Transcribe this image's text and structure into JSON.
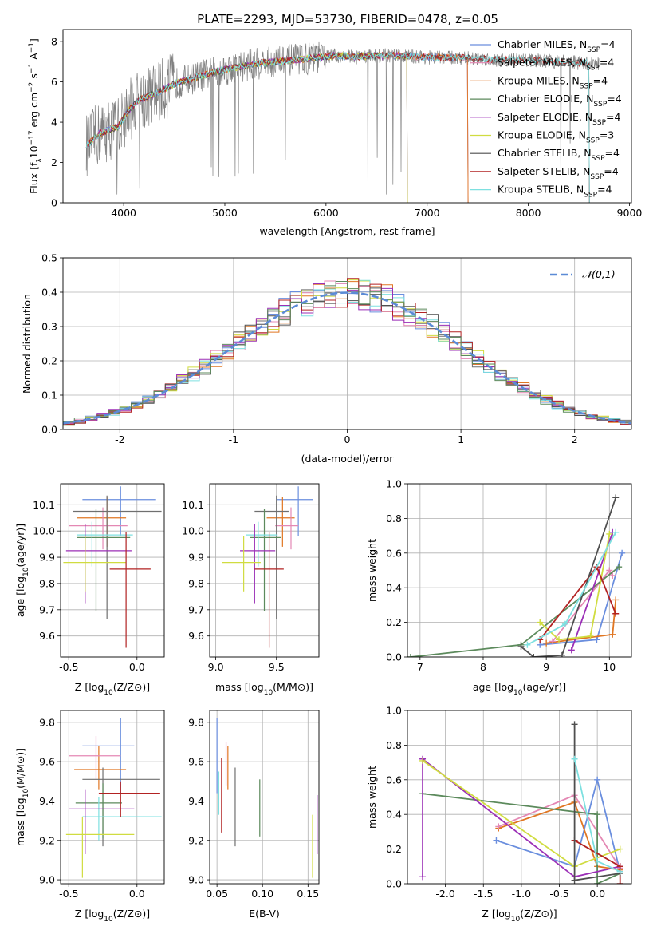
{
  "figure_title": "PLATE=2293, MJD=53730, FIBERID=0478, z=0.05",
  "model_colors": [
    "#6a8ede",
    "#e07622",
    "#e488b4",
    "#6f6f6f",
    "#d0dc40",
    "#7ee0e0",
    "#9b2fb6",
    "#b22222",
    "#4f4f4f",
    "#5c8a5c"
  ],
  "chart_data": [
    {
      "id": "spectrum",
      "type": "line",
      "title": "PLATE=2293, MJD=53730, FIBERID=0478, z=0.05",
      "xlabel": "wavelength [Angstrom, rest frame]",
      "ylabel": "Flux [f_λ 10^-17 erg cm^-2 s^-1 A^-1]",
      "xlim": [
        3400,
        9020
      ],
      "ylim": [
        0,
        8.6
      ],
      "xticks": [
        4000,
        5000,
        6000,
        7000,
        8000,
        9000
      ],
      "yticks": [
        0,
        2,
        4,
        6,
        8
      ],
      "grid": false,
      "legend_position": "top-right",
      "observed": {
        "color": "#808080",
        "x": [
          3650,
          3750,
          3850,
          3950,
          4050,
          4150,
          4300,
          4500,
          4700,
          4900,
          5100,
          5300,
          5500,
          5700,
          5900,
          6100,
          6300,
          6500,
          6700,
          6900,
          7100,
          7300,
          7500,
          7700,
          7900,
          8100,
          8300,
          8500,
          8700
        ],
        "y": [
          2.9,
          3.4,
          3.6,
          3.8,
          4.6,
          5.1,
          5.4,
          5.9,
          6.2,
          6.5,
          6.7,
          6.9,
          7.0,
          7.1,
          7.2,
          7.3,
          7.25,
          7.3,
          7.3,
          7.25,
          7.2,
          7.2,
          7.15,
          7.1,
          7.1,
          7.05,
          7.0,
          6.95,
          6.9
        ]
      },
      "series": [
        {
          "name": "Chabrier MILES, N_SSP=4",
          "color": "#6a8ede",
          "end": 7400
        },
        {
          "name": "Salpeter MILES, N_SSP=4",
          "color": "#e488b4",
          "end": 7400
        },
        {
          "name": "Kroupa MILES, N_SSP=4",
          "color": "#e07622",
          "end": 7400
        },
        {
          "name": "Chabrier ELODIE, N_SSP=4",
          "color": "#5c8a5c",
          "end": 6800
        },
        {
          "name": "Salpeter ELODIE, N_SSP=4",
          "color": "#9b2fb6",
          "end": 6800
        },
        {
          "name": "Kroupa ELODIE, N_SSP=3",
          "color": "#d0dc40",
          "end": 6800
        },
        {
          "name": "Chabrier STELIB, N_SSP=4",
          "color": "#4f4f4f",
          "end": 8600
        },
        {
          "name": "Salpeter STELIB, N_SSP=4",
          "color": "#b22222",
          "end": 8600
        },
        {
          "name": "Kroupa STELIB, N_SSP=4",
          "color": "#7ee0e0",
          "end": 8600
        }
      ]
    },
    {
      "id": "residuals",
      "type": "histogram",
      "xlabel": "(data-model)/error",
      "ylabel": "Normed distribution",
      "xlim": [
        -2.5,
        2.5
      ],
      "ylim": [
        0,
        0.5
      ],
      "xticks": [
        -2,
        -1,
        0,
        1,
        2
      ],
      "yticks": [
        0.0,
        0.1,
        0.2,
        0.3,
        0.4,
        0.5
      ],
      "grid": true,
      "legend_position": "top-right",
      "reference": {
        "name": "𝒩(0,1)",
        "color": "#5b8bd6",
        "mean": 0,
        "sigma": 1
      },
      "bin_width": 0.1
    },
    {
      "id": "age_vs_Z",
      "type": "errorbar",
      "xlabel": "Z [log10(Z/Z⊙)]",
      "ylabel": "age [log10(age/yr)]",
      "xlim": [
        -0.56,
        0.2
      ],
      "ylim": [
        9.52,
        10.18
      ],
      "xticks": [
        -0.5,
        0.0
      ],
      "yticks": [
        9.6,
        9.7,
        9.8,
        9.9,
        10.0,
        10.1
      ],
      "grid": true,
      "points": [
        {
          "x": -0.12,
          "y": 10.12,
          "xerr": [
            0.28,
            0.26
          ],
          "yerr": [
            0.14,
            0.05
          ],
          "color": "#6a8ede"
        },
        {
          "x": -0.22,
          "y": 10.05,
          "xerr": [
            0.22,
            0.14
          ],
          "yerr": [
            0.11,
            0.08
          ],
          "color": "#e07622"
        },
        {
          "x": -0.25,
          "y": 10.02,
          "xerr": [
            0.25,
            0.18
          ],
          "yerr": [
            0.09,
            0.07
          ],
          "color": "#e488b4"
        },
        {
          "x": -0.22,
          "y": 10.075,
          "xerr": [
            0.25,
            0.4
          ],
          "yerr": [
            0.41,
            0.06
          ],
          "color": "#6f6f6f"
        },
        {
          "x": -0.3,
          "y": 9.975,
          "xerr": [
            0.14,
            0.25
          ],
          "yerr": [
            0.28,
            0.11
          ],
          "color": "#5c8a5c"
        },
        {
          "x": -0.33,
          "y": 9.985,
          "xerr": [
            0.11,
            0.3
          ],
          "yerr": [
            0.12,
            0.05
          ],
          "color": "#7ee0e0"
        },
        {
          "x": -0.38,
          "y": 9.925,
          "xerr": [
            0.14,
            0.34
          ],
          "yerr": [
            0.2,
            0.1
          ],
          "color": "#9b2fb6"
        },
        {
          "x": -0.38,
          "y": 9.88,
          "xerr": [
            0.16,
            0.3
          ],
          "yerr": [
            0.11,
            0.1
          ],
          "color": "#d0dc40"
        },
        {
          "x": -0.08,
          "y": 9.855,
          "xerr": [
            0.12,
            0.18
          ],
          "yerr": [
            0.3,
            0.14
          ],
          "color": "#b22222"
        }
      ]
    },
    {
      "id": "age_vs_mass",
      "type": "errorbar",
      "xlabel": "mass [log10(M/M⊙)]",
      "ylabel": "",
      "xlim": [
        8.95,
        9.85
      ],
      "ylim": [
        9.52,
        10.18
      ],
      "xticks": [
        9.0,
        9.5
      ],
      "yticks": [
        9.6,
        9.7,
        9.8,
        9.9,
        10.0,
        10.1
      ],
      "grid": true,
      "points": [
        {
          "x": 9.68,
          "y": 10.12,
          "xerr": [
            0.18,
            0.12
          ],
          "yerr": [
            0.14,
            0.05
          ],
          "color": "#6a8ede"
        },
        {
          "x": 9.55,
          "y": 10.05,
          "xerr": [
            0.13,
            0.1
          ],
          "yerr": [
            0.11,
            0.08
          ],
          "color": "#e07622"
        },
        {
          "x": 9.62,
          "y": 10.02,
          "xerr": [
            0.13,
            0.06
          ],
          "yerr": [
            0.09,
            0.07
          ],
          "color": "#e488b4"
        },
        {
          "x": 9.5,
          "y": 10.075,
          "xerr": [
            0.18,
            0.1
          ],
          "yerr": [
            0.41,
            0.06
          ],
          "color": "#6f6f6f"
        },
        {
          "x": 9.4,
          "y": 9.975,
          "xerr": [
            0.12,
            0.14
          ],
          "yerr": [
            0.28,
            0.11
          ],
          "color": "#5c8a5c"
        },
        {
          "x": 9.35,
          "y": 9.985,
          "xerr": [
            0.1,
            0.16
          ],
          "yerr": [
            0.12,
            0.05
          ],
          "color": "#7ee0e0"
        },
        {
          "x": 9.32,
          "y": 9.925,
          "xerr": [
            0.12,
            0.17
          ],
          "yerr": [
            0.2,
            0.1
          ],
          "color": "#9b2fb6"
        },
        {
          "x": 9.23,
          "y": 9.88,
          "xerr": [
            0.18,
            0.14
          ],
          "yerr": [
            0.11,
            0.1
          ],
          "color": "#d0dc40"
        },
        {
          "x": 9.44,
          "y": 9.855,
          "xerr": [
            0.12,
            0.12
          ],
          "yerr": [
            0.3,
            0.14
          ],
          "color": "#b22222"
        }
      ]
    },
    {
      "id": "weight_vs_age",
      "type": "line",
      "xlabel": "age [log10(age/yr)]",
      "ylabel": "mass weight",
      "xlim": [
        6.8,
        10.35
      ],
      "ylim": [
        0.0,
        1.0
      ],
      "xticks": [
        7,
        8,
        9,
        10
      ],
      "yticks": [
        0.0,
        0.2,
        0.4,
        0.6,
        0.8,
        1.0
      ],
      "grid": true,
      "series": [
        {
          "color": "#6a8ede",
          "points": [
            [
              8.9,
              0.07
            ],
            [
              9.8,
              0.1
            ],
            [
              10.2,
              0.6
            ]
          ]
        },
        {
          "color": "#e07622",
          "points": [
            [
              9.0,
              0.08
            ],
            [
              10.05,
              0.13
            ],
            [
              10.1,
              0.33
            ]
          ]
        },
        {
          "color": "#e488b4",
          "points": [
            [
              9.1,
              0.09
            ],
            [
              10.0,
              0.5
            ],
            [
              10.05,
              0.47
            ]
          ]
        },
        {
          "color": "#5c8a5c",
          "points": [
            [
              6.85,
              0.0
            ],
            [
              8.6,
              0.07
            ],
            [
              10.15,
              0.52
            ]
          ]
        },
        {
          "color": "#9b2fb6",
          "points": [
            [
              9.4,
              0.04
            ],
            [
              10.05,
              0.72
            ]
          ]
        },
        {
          "color": "#d0dc40",
          "points": [
            [
              8.9,
              0.2
            ],
            [
              9.2,
              0.1
            ],
            [
              9.7,
              0.12
            ],
            [
              10.0,
              0.71
            ]
          ]
        },
        {
          "color": "#b22222",
          "points": [
            [
              8.9,
              0.1
            ],
            [
              9.8,
              0.52
            ],
            [
              10.1,
              0.25
            ]
          ]
        },
        {
          "color": "#4f4f4f",
          "points": [
            [
              8.6,
              0.06
            ],
            [
              8.8,
              0.0
            ],
            [
              9.25,
              0.01
            ],
            [
              10.1,
              0.92
            ]
          ]
        },
        {
          "color": "#7ee0e0",
          "points": [
            [
              8.7,
              0.07
            ],
            [
              9.3,
              0.19
            ],
            [
              10.1,
              0.72
            ]
          ]
        }
      ]
    },
    {
      "id": "mass_vs_Z",
      "type": "errorbar",
      "xlabel": "Z [log10(Z/Z⊙)]",
      "ylabel": "mass [log10(M/M⊙)]",
      "xlim": [
        -0.56,
        0.2
      ],
      "ylim": [
        8.98,
        9.86
      ],
      "xticks": [
        -0.5,
        0.0
      ],
      "yticks": [
        9.0,
        9.2,
        9.4,
        9.6,
        9.8
      ],
      "grid": true,
      "points": [
        {
          "x": -0.12,
          "y": 9.68,
          "xerr": [
            0.28,
            0.1
          ],
          "yerr": [
            0.24,
            0.14
          ],
          "color": "#6a8ede"
        },
        {
          "x": -0.28,
          "y": 9.56,
          "xerr": [
            0.18,
            0.2
          ],
          "yerr": [
            0.1,
            0.12
          ],
          "color": "#e07622"
        },
        {
          "x": -0.3,
          "y": 9.63,
          "xerr": [
            0.2,
            0.18
          ],
          "yerr": [
            0.12,
            0.1
          ],
          "color": "#e488b4"
        },
        {
          "x": -0.25,
          "y": 9.51,
          "xerr": [
            0.15,
            0.42
          ],
          "yerr": [
            0.34,
            0.06
          ],
          "color": "#6f6f6f"
        },
        {
          "x": -0.25,
          "y": 9.39,
          "xerr": [
            0.2,
            0.14
          ],
          "yerr": [
            0.18,
            0.1
          ],
          "color": "#5c8a5c"
        },
        {
          "x": -0.28,
          "y": 9.32,
          "xerr": [
            0.12,
            0.46
          ],
          "yerr": [
            0.12,
            0.1
          ],
          "color": "#7ee0e0"
        },
        {
          "x": -0.38,
          "y": 9.36,
          "xerr": [
            0.12,
            0.36
          ],
          "yerr": [
            0.23,
            0.1
          ],
          "color": "#9b2fb6"
        },
        {
          "x": -0.4,
          "y": 9.23,
          "xerr": [
            0.12,
            0.38
          ],
          "yerr": [
            0.22,
            0.09
          ],
          "color": "#d0dc40"
        },
        {
          "x": -0.12,
          "y": 9.44,
          "xerr": [
            0.16,
            0.29
          ],
          "yerr": [
            0.12,
            0.06
          ],
          "color": "#b22222"
        }
      ]
    },
    {
      "id": "mass_vs_ebv",
      "type": "errorbar",
      "xlabel": "E(B-V)",
      "ylabel": "",
      "xlim": [
        0.042,
        0.162
      ],
      "ylim": [
        8.98,
        9.86
      ],
      "xticks": [
        0.05,
        0.1,
        0.15
      ],
      "yticks": [
        9.0,
        9.2,
        9.4,
        9.6,
        9.8
      ],
      "grid": true,
      "points": [
        {
          "x": 0.05,
          "y": 9.68,
          "yerr": [
            0.24,
            0.14
          ],
          "color": "#6a8ede"
        },
        {
          "x": 0.062,
          "y": 9.56,
          "yerr": [
            0.1,
            0.12
          ],
          "color": "#e07622"
        },
        {
          "x": 0.06,
          "y": 9.6,
          "yerr": [
            0.12,
            0.1
          ],
          "color": "#e488b4"
        },
        {
          "x": 0.07,
          "y": 9.42,
          "yerr": [
            0.25,
            0.15
          ],
          "color": "#6f6f6f"
        },
        {
          "x": 0.097,
          "y": 9.36,
          "yerr": [
            0.14,
            0.15
          ],
          "color": "#5c8a5c"
        },
        {
          "x": 0.052,
          "y": 9.45,
          "yerr": [
            0.12,
            0.1
          ],
          "color": "#7ee0e0"
        },
        {
          "x": 0.16,
          "y": 9.28,
          "yerr": [
            0.15,
            0.15
          ],
          "color": "#9b2fb6"
        },
        {
          "x": 0.155,
          "y": 9.17,
          "yerr": [
            0.16,
            0.16
          ],
          "color": "#d0dc40"
        },
        {
          "x": 0.055,
          "y": 9.42,
          "yerr": [
            0.18,
            0.2
          ],
          "color": "#b22222"
        }
      ]
    },
    {
      "id": "weight_vs_Z",
      "type": "line",
      "xlabel": "Z [log10(Z/Z⊙)]",
      "ylabel": "mass weight",
      "xlim": [
        -2.5,
        0.45
      ],
      "ylim": [
        0.0,
        1.0
      ],
      "xticks": [
        -2.0,
        -1.5,
        -1.0,
        -0.5,
        0.0
      ],
      "yticks": [
        0.0,
        0.2,
        0.4,
        0.6,
        0.8,
        1.0
      ],
      "grid": true,
      "series": [
        {
          "color": "#6a8ede",
          "points": [
            [
              -1.33,
              0.25
            ],
            [
              -0.3,
              0.1
            ],
            [
              0.0,
              0.6
            ],
            [
              0.3,
              0.07
            ]
          ]
        },
        {
          "color": "#e07622",
          "points": [
            [
              -1.3,
              0.32
            ],
            [
              -0.3,
              0.47
            ],
            [
              0.0,
              0.1
            ],
            [
              0.3,
              0.08
            ]
          ]
        },
        {
          "color": "#e488b4",
          "points": [
            [
              -1.3,
              0.33
            ],
            [
              -0.3,
              0.51
            ],
            [
              0.3,
              0.09
            ]
          ]
        },
        {
          "color": "#5c8a5c",
          "points": [
            [
              -2.3,
              0.52
            ],
            [
              0.0,
              0.4
            ],
            [
              0.0,
              0.0
            ],
            [
              0.3,
              0.06
            ]
          ]
        },
        {
          "color": "#9b2fb6",
          "points": [
            [
              -2.3,
              0.04
            ],
            [
              -2.3,
              0.72
            ],
            [
              -0.3,
              0.04
            ],
            [
              0.3,
              0.1
            ]
          ]
        },
        {
          "color": "#d0dc40",
          "points": [
            [
              -2.3,
              0.71
            ],
            [
              -0.3,
              0.1
            ],
            [
              0.3,
              0.2
            ]
          ]
        },
        {
          "color": "#b22222",
          "points": [
            [
              -0.3,
              0.25
            ],
            [
              0.3,
              0.1
            ],
            [
              0.3,
              0.0
            ]
          ]
        },
        {
          "color": "#4f4f4f",
          "points": [
            [
              -0.3,
              0.92
            ],
            [
              -0.3,
              0.02
            ],
            [
              0.3,
              0.06
            ]
          ]
        },
        {
          "color": "#7ee0e0",
          "points": [
            [
              -0.3,
              0.72
            ],
            [
              0.0,
              0.13
            ],
            [
              0.3,
              0.07
            ]
          ]
        }
      ]
    }
  ]
}
